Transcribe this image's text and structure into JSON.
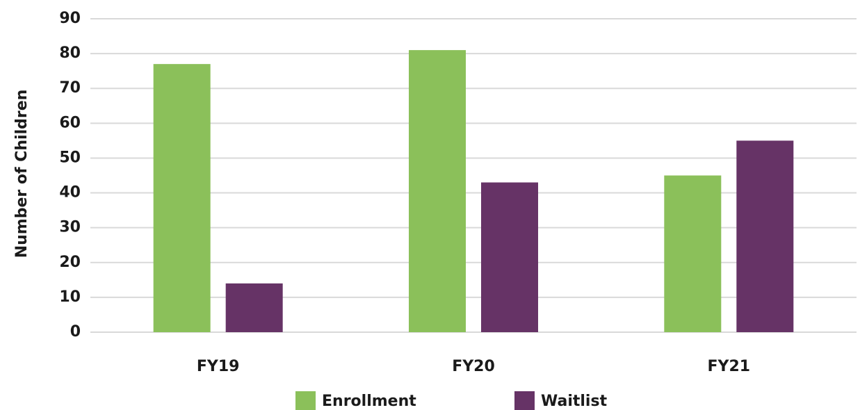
{
  "chart_data": {
    "type": "bar",
    "y_label": "Number of Children",
    "categories": [
      "FY19",
      "FY20",
      "FY21"
    ],
    "series": [
      {
        "name": "Enrollment",
        "color": "#8bc05a",
        "values": [
          77,
          81,
          45
        ]
      },
      {
        "name": "Waitlist",
        "color": "#663366",
        "values": [
          14,
          43,
          55
        ]
      }
    ],
    "ylim": [
      0,
      90
    ],
    "yticks": [
      0,
      10,
      20,
      30,
      40,
      50,
      60,
      70,
      80,
      90
    ],
    "grid": true,
    "legend": "bottom"
  }
}
